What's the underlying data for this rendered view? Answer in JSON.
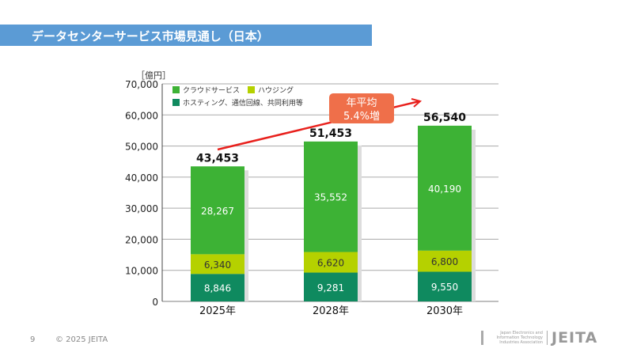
{
  "header": {
    "title": "データセンターサービス市場見通し（日本）"
  },
  "footer": {
    "page": "9",
    "copyright": "© 2025 JEITA",
    "logo_text": "JEITA",
    "logo_subtext": "Japan Electronics and Information Technology Industries Association"
  },
  "chart_data": {
    "type": "stacked-bar",
    "unit_label": "［億円］",
    "categories": [
      "2025年",
      "2028年",
      "2030年"
    ],
    "series": [
      {
        "name": "ホスティング、通信回線、共同利用等",
        "color": "#0f8a5f",
        "values": [
          8846,
          9281,
          9550
        ],
        "labels": [
          "8,846",
          "9,281",
          "9,550"
        ]
      },
      {
        "name": "ハウジング",
        "color": "#b5d100",
        "values": [
          6340,
          6620,
          6800
        ],
        "labels": [
          "6,340",
          "6,620",
          "6,800"
        ]
      },
      {
        "name": "クラウドサービス",
        "color": "#3db235",
        "values": [
          28267,
          35552,
          40190
        ],
        "labels": [
          "28,267",
          "35,552",
          "40,190"
        ]
      }
    ],
    "totals": [
      "43,453",
      "51,453",
      "56,540"
    ],
    "ylim": [
      0,
      70000
    ],
    "yticks": [
      "0",
      "10,000",
      "20,000",
      "30,000",
      "40,000",
      "50,000",
      "60,000",
      "70,000"
    ],
    "grid": true,
    "legend": "top-left",
    "annotation": {
      "line1": "年平均",
      "line2": "5.4%増",
      "color": "#ef6f4a",
      "arrow_color": "#e8201c"
    }
  }
}
